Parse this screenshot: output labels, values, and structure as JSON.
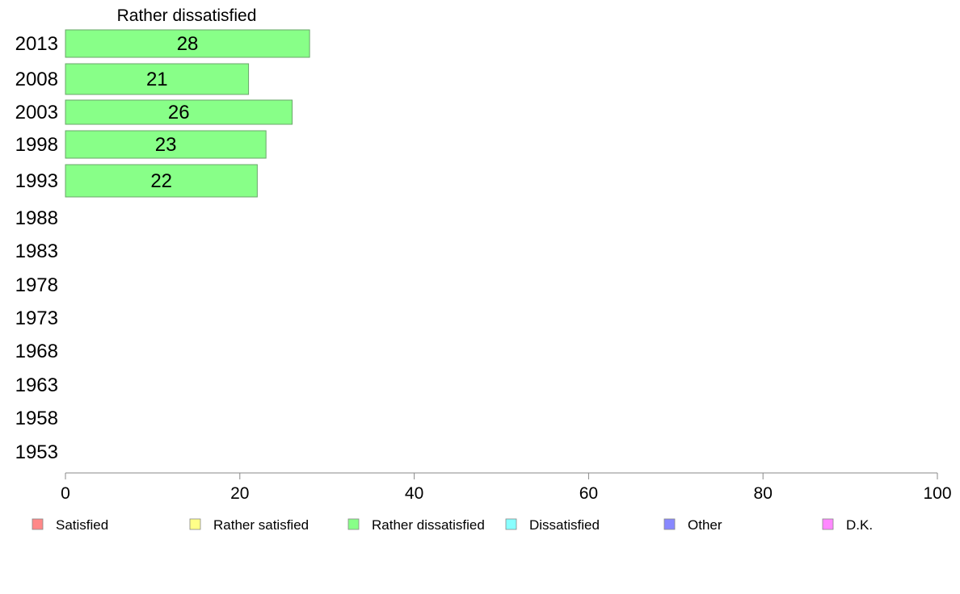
{
  "chart_data": {
    "type": "bar",
    "orientation": "horizontal",
    "title": "Rather dissatisfied",
    "categories": [
      "2013",
      "2008",
      "2003",
      "1998",
      "1993",
      "1988",
      "1983",
      "1978",
      "1973",
      "1968",
      "1963",
      "1958",
      "1953"
    ],
    "series": [
      {
        "name": "Rather dissatisfied",
        "values": [
          28,
          21,
          26,
          23,
          22,
          null,
          null,
          null,
          null,
          null,
          null,
          null,
          null
        ],
        "color": "#88ff88"
      }
    ],
    "xlim": [
      0,
      100
    ],
    "xticks": [
      0,
      20,
      40,
      60,
      80,
      100
    ],
    "grid": false,
    "legend_position": "bottom",
    "legend": [
      {
        "label": "Satisfied",
        "color": "#ff8888"
      },
      {
        "label": "Rather satisfied",
        "color": "#ffff88"
      },
      {
        "label": "Rather dissatisfied",
        "color": "#88ff88"
      },
      {
        "label": "Dissatisfied",
        "color": "#88ffff"
      },
      {
        "label": "Other",
        "color": "#8888ff"
      },
      {
        "label": "D.K.",
        "color": "#ff88ff"
      }
    ]
  }
}
